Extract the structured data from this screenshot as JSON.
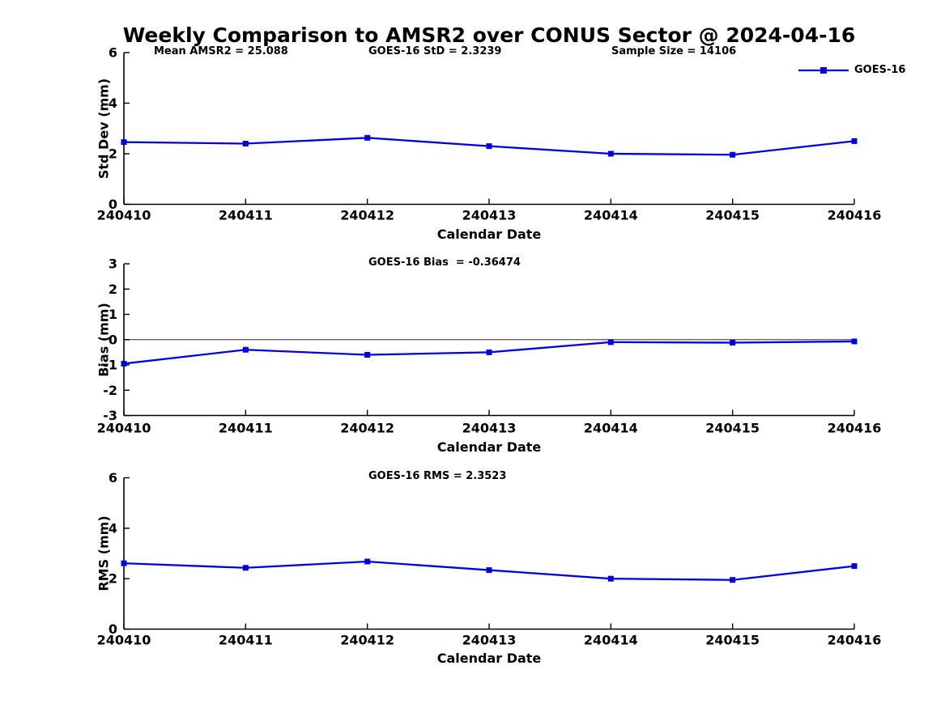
{
  "page": {
    "title": "Weekly Comparison to AMSR2 over CONUS Sector @ 2024-04-16"
  },
  "legend": {
    "label": "GOES-16",
    "color": "#0000dd"
  },
  "chart_data": [
    {
      "type": "line",
      "subplot": "std-dev",
      "title": "",
      "xlabel": "Calendar Date",
      "ylabel": "Std Dev (mm)",
      "categories": [
        "240410",
        "240411",
        "240412",
        "240413",
        "240414",
        "240415",
        "240416"
      ],
      "series": [
        {
          "name": "GOES-16",
          "color": "#0000dd",
          "marker": "square",
          "values": [
            2.46,
            2.4,
            2.63,
            2.3,
            2.0,
            1.96,
            2.5
          ]
        }
      ],
      "ylim": [
        0,
        6
      ],
      "yticks": [
        0,
        2,
        4,
        6
      ],
      "grid": false,
      "zero_line": false,
      "legend_position": "top-right",
      "annotations": [
        "Mean AMSR2 = 25.088",
        "GOES-16 StD = 2.3239",
        "Sample Size = 14106"
      ]
    },
    {
      "type": "line",
      "subplot": "bias",
      "title": "",
      "xlabel": "Calendar Date",
      "ylabel": "Bias (mm)",
      "categories": [
        "240410",
        "240411",
        "240412",
        "240413",
        "240414",
        "240415",
        "240416"
      ],
      "series": [
        {
          "name": "GOES-16",
          "color": "#0000dd",
          "marker": "square",
          "values": [
            -0.95,
            -0.4,
            -0.6,
            -0.5,
            -0.1,
            -0.12,
            -0.07
          ]
        }
      ],
      "ylim": [
        -3,
        3
      ],
      "yticks": [
        -3,
        -2,
        -1,
        0,
        1,
        2,
        3
      ],
      "grid": false,
      "zero_line": true,
      "zero_line_color": "#555555",
      "annotations": [
        "GOES-16 Bias  = -0.36474"
      ]
    },
    {
      "type": "line",
      "subplot": "rms",
      "title": "",
      "xlabel": "Calendar Date",
      "ylabel": "RMS (mm)",
      "categories": [
        "240410",
        "240411",
        "240412",
        "240413",
        "240414",
        "240415",
        "240416"
      ],
      "series": [
        {
          "name": "GOES-16",
          "color": "#0000dd",
          "marker": "square",
          "values": [
            2.61,
            2.43,
            2.68,
            2.34,
            2.0,
            1.95,
            2.5
          ]
        }
      ],
      "ylim": [
        0,
        6
      ],
      "yticks": [
        0,
        2,
        4,
        6
      ],
      "grid": false,
      "zero_line": false,
      "annotations": [
        "GOES-16 RMS = 2.3523"
      ]
    }
  ]
}
